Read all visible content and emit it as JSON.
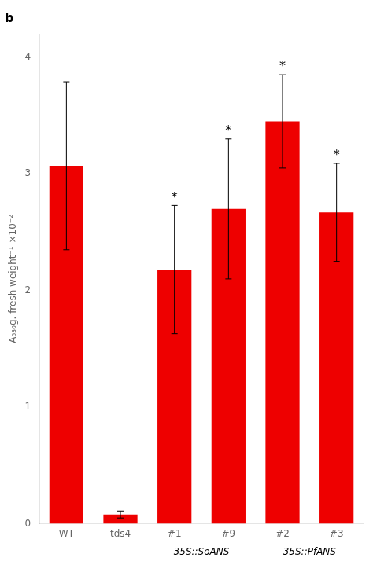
{
  "chart_data": {
    "type": "bar",
    "title": "b",
    "categories": [
      "WT",
      "tds4",
      "#1",
      "#9",
      "#2",
      "#3"
    ],
    "values": [
      3.07,
      0.08,
      2.18,
      2.7,
      3.45,
      2.67
    ],
    "errors": [
      0.72,
      0.03,
      0.55,
      0.6,
      0.4,
      0.42
    ],
    "significance": [
      null,
      null,
      "*",
      "*",
      "*",
      "*"
    ],
    "annotations": [
      {
        "text": "35S::SoANS",
        "under": [
          "#1",
          "#9"
        ]
      },
      {
        "text": "35S::PfANS",
        "under": [
          "#2",
          "#3"
        ]
      }
    ],
    "y_label": "A₅₃₀g. fresh weight⁻¹ ×10⁻²",
    "color": "#EE0000",
    "ylim": [
      0,
      4.2
    ],
    "yticks": [
      0,
      1,
      2,
      3,
      4
    ],
    "grid": false
  }
}
